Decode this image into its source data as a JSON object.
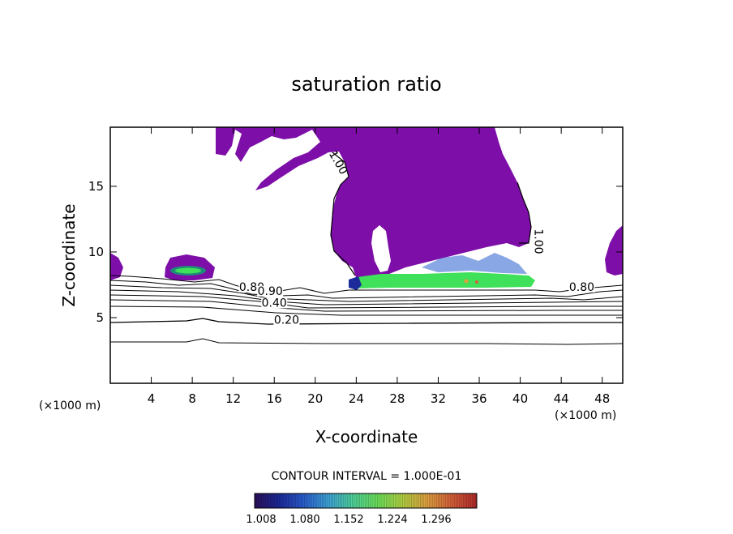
{
  "chart_data": {
    "type": "contour",
    "title": "saturation ratio",
    "xlabel": "X-coordinate",
    "ylabel": "Z-coordinate",
    "x_unit_label": "(×1000 m)",
    "y_unit_label": "(×1000 m)",
    "xlim": [
      0,
      50
    ],
    "ylim": [
      0,
      19.5
    ],
    "x_ticks": [
      4,
      8,
      12,
      16,
      20,
      24,
      28,
      32,
      36,
      40,
      44,
      48
    ],
    "y_ticks": [
      5,
      10,
      15
    ],
    "contour_interval_text": "CONTOUR INTERVAL = 1.000E-01",
    "contour_levels": [
      0.1,
      0.2,
      0.3,
      0.4,
      0.5,
      0.6,
      0.7,
      0.8,
      0.9,
      1.0
    ],
    "contour_labels": [
      {
        "text": "1.00",
        "x": 22.0,
        "y": 16.7
      },
      {
        "text": "1.00",
        "x": 41.5,
        "y": 10.8
      },
      {
        "text": "0.80",
        "x": 13.8,
        "y": 7.1
      },
      {
        "text": "0.90",
        "x": 15.6,
        "y": 6.8
      },
      {
        "text": "0.40",
        "x": 16.0,
        "y": 5.9
      },
      {
        "text": "0.20",
        "x": 17.2,
        "y": 4.6
      },
      {
        "text": "0.80",
        "x": 46.0,
        "y": 7.1
      }
    ],
    "colorbar": {
      "ticks": [
        "1.008",
        "1.080",
        "1.152",
        "1.224",
        "1.296"
      ],
      "colors": [
        "#2b0f5c",
        "#1c2a9a",
        "#2a5fd0",
        "#3fa5d8",
        "#4fd39a",
        "#6ee15a",
        "#b5d243",
        "#e0a040",
        "#d8603a",
        "#b02a2a"
      ]
    }
  }
}
